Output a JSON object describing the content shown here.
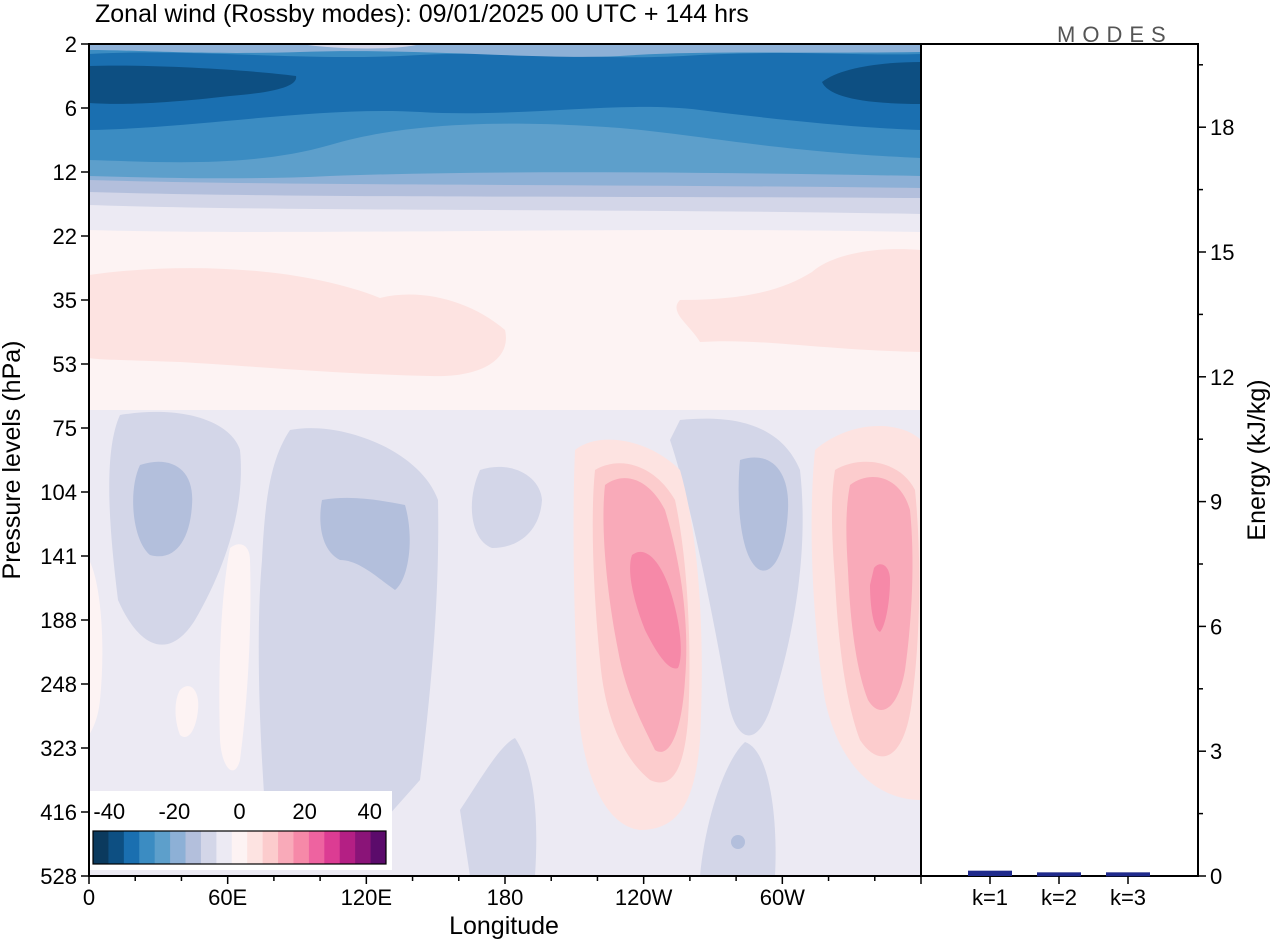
{
  "chart_data": [
    {
      "type": "heatmap",
      "title": "Zonal wind (Rossby modes):  09/01/2025  00 UTC  + 144 hrs",
      "xlabel": "Longitude",
      "ylabel": "Pressure levels (hPa)",
      "x_ticks": [
        "0",
        "60E",
        "120E",
        "180",
        "120W",
        "60W"
      ],
      "x_tick_degrees": [
        0,
        60,
        120,
        180,
        240,
        300
      ],
      "x_range_degrees": [
        0,
        360
      ],
      "y_ticks": [
        "2",
        "6",
        "12",
        "22",
        "35",
        "53",
        "75",
        "104",
        "141",
        "188",
        "248",
        "323",
        "416",
        "528"
      ],
      "y_axis": "pressure levels, top to bottom",
      "colorbar": {
        "labels": [
          "-40",
          "-20",
          "0",
          "20",
          "40"
        ],
        "levels": [
          -45,
          -40,
          -35,
          -30,
          -25,
          -20,
          -15,
          -10,
          -5,
          0,
          5,
          10,
          15,
          20,
          25,
          30,
          35,
          40,
          45
        ],
        "colors": [
          "#0b3a5e",
          "#0d4f82",
          "#1a6fb0",
          "#3b8cc2",
          "#5d9fcb",
          "#8db0d6",
          "#b3bfdc",
          "#d3d6e8",
          "#eceaf3",
          "#fdf3f3",
          "#fde3e1",
          "#fccccd",
          "#f9aab9",
          "#f689a8",
          "#ee63a0",
          "#dc3c93",
          "#b41f84",
          "#8a1478",
          "#5b0b6b"
        ]
      },
      "wind_field": [
        {
          "p_top": 2,
          "p_bot": 3,
          "value": -30,
          "variation": "lighter (-20) near 155E and 230E"
        },
        {
          "p_top": 3,
          "p_bot": 6,
          "value": -42,
          "variation": "strongest 0-90E and 320-360E"
        },
        {
          "p_top": 6,
          "p_bot": 9,
          "value": -35
        },
        {
          "p_top": 9,
          "p_bot": 12,
          "value": -25
        },
        {
          "p_top": 12,
          "p_bot": 16,
          "value": -15
        },
        {
          "p_top": 16,
          "p_bot": 22,
          "value": -5
        },
        {
          "p_top": 22,
          "p_bot": 28,
          "value": 3
        },
        {
          "p_top": 28,
          "p_bot": 55,
          "value": 7,
          "variation": "maxima 0-180E and 250-360E"
        },
        {
          "p_top": 55,
          "p_bot": 75,
          "value": 2
        },
        {
          "p_top": 75,
          "p_bot": 528,
          "value": -3,
          "features": [
            {
              "lon": 32,
              "p": 120,
              "value": -10
            },
            {
              "lon": 112,
              "p": 135,
              "value": -10
            },
            {
              "lon": 240,
              "p": 180,
              "value": 22
            },
            {
              "lon": 296,
              "p": 135,
              "value": -10
            },
            {
              "lon": 343,
              "p": 200,
              "value": 20
            }
          ]
        }
      ]
    },
    {
      "type": "bar",
      "ylabel": "Energy (kJ/kg)",
      "categories": [
        "k=1",
        "k=2",
        "k=3"
      ],
      "values": [
        0.08,
        0.04,
        0.04
      ],
      "ylim": [
        0,
        20
      ],
      "y_ticks": [
        "0",
        "3",
        "6",
        "9",
        "12",
        "15",
        "18"
      ],
      "bar_color": "#1f2a8c"
    }
  ],
  "logo": "MODES"
}
